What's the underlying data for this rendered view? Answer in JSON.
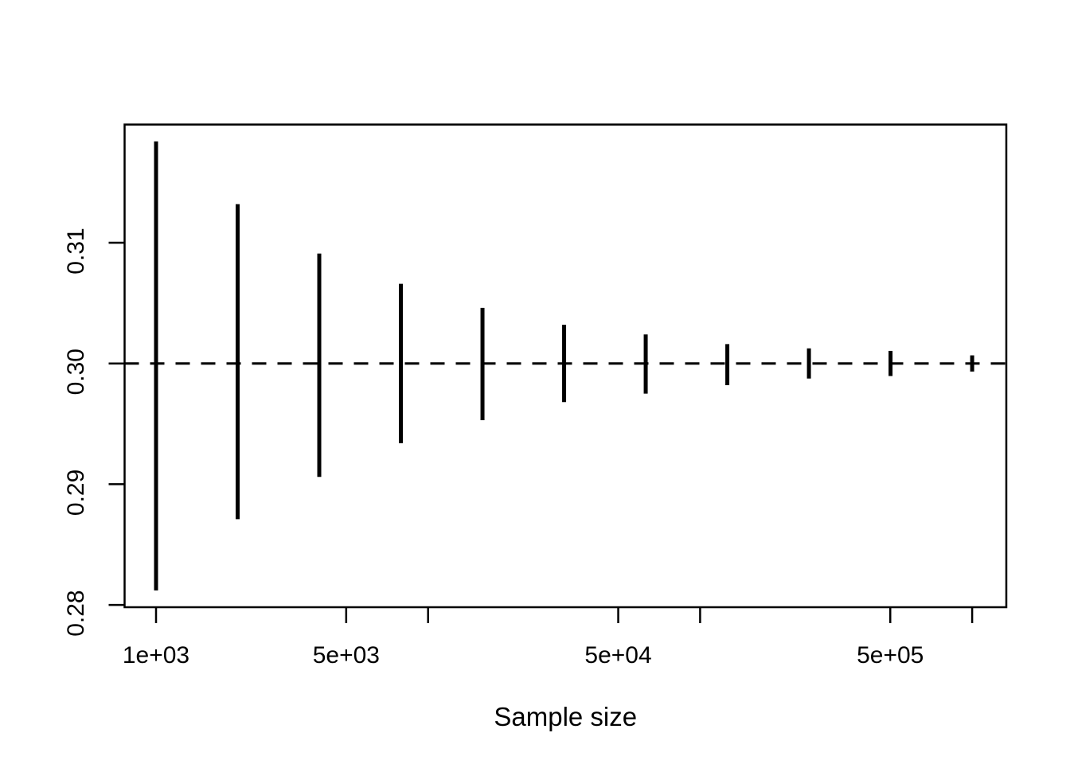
{
  "figure": {
    "background_color": "#ffffff",
    "foreground_color": "#000000"
  },
  "chart_data": {
    "type": "scatter",
    "subtype": "vertical-interval-plot",
    "title": "",
    "xlabel": "Sample size",
    "ylabel": "",
    "x_scale": "log10",
    "xlim": [
      1000,
      1000000
    ],
    "ylim": [
      0.2799,
      0.3198
    ],
    "grid": "off",
    "legend": "none",
    "reference_line": {
      "y": 0.3,
      "style": "dashed",
      "color": "#000000"
    },
    "x_ticks": [
      {
        "value": 1000,
        "label": "1e+03"
      },
      {
        "value": 5000,
        "label": "5e+03"
      },
      {
        "value": 10000,
        "label": ""
      },
      {
        "value": 50000,
        "label": "5e+04"
      },
      {
        "value": 100000,
        "label": ""
      },
      {
        "value": 500000,
        "label": "5e+05"
      },
      {
        "value": 1000000,
        "label": ""
      }
    ],
    "y_ticks": [
      {
        "value": 0.28,
        "label": "0.28"
      },
      {
        "value": 0.29,
        "label": "0.29"
      },
      {
        "value": 0.3,
        "label": "0.30"
      },
      {
        "value": 0.31,
        "label": "0.31"
      }
    ],
    "intervals": [
      {
        "n": 1000,
        "low": 0.2812,
        "high": 0.3184
      },
      {
        "n": 1995,
        "low": 0.2871,
        "high": 0.3132
      },
      {
        "n": 3981,
        "low": 0.2906,
        "high": 0.3091
      },
      {
        "n": 7943,
        "low": 0.2934,
        "high": 0.3066
      },
      {
        "n": 15849,
        "low": 0.2953,
        "high": 0.3046
      },
      {
        "n": 31623,
        "low": 0.2968,
        "high": 0.3032
      },
      {
        "n": 63096,
        "low": 0.2975,
        "high": 0.3024
      },
      {
        "n": 125893,
        "low": 0.2982,
        "high": 0.3016
      },
      {
        "n": 251189,
        "low": 0.29875,
        "high": 0.30125
      },
      {
        "n": 501187,
        "low": 0.29896,
        "high": 0.30104
      },
      {
        "n": 1000000,
        "low": 0.29933,
        "high": 0.30067
      }
    ]
  }
}
